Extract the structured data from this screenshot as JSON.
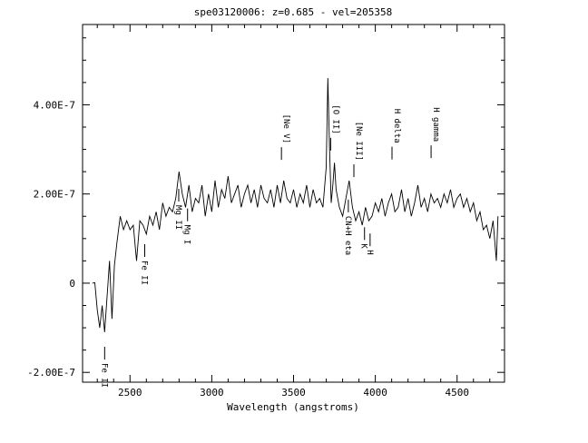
{
  "chart_data": {
    "type": "line",
    "title": "spe03120006: z=0.685 - vel=205358",
    "xlabel": "Wavelength (angstroms)",
    "ylabel": "",
    "xlim": [
      2210,
      4790
    ],
    "ylim": [
      -2.22e-07,
      5.8e-07
    ],
    "x_ticks": [
      2500,
      3000,
      3500,
      4000,
      4500
    ],
    "x_tick_labels": [
      "2500",
      "3000",
      "3500",
      "4000",
      "4500"
    ],
    "y_ticks": [
      -2e-07,
      0,
      2e-07,
      4e-07
    ],
    "y_tick_labels": [
      "-2.00E-7",
      "0",
      "2.00E-7",
      "4.00E-7"
    ],
    "grid": false,
    "series": [
      {
        "x": [
          2270,
          2285,
          2300,
          2315,
          2330,
          2345,
          2360,
          2375,
          2390,
          2405,
          2420,
          2440,
          2460,
          2480,
          2500,
          2520,
          2540,
          2560,
          2580,
          2600,
          2620,
          2640,
          2660,
          2680,
          2700,
          2720,
          2740,
          2760,
          2780,
          2800,
          2820,
          2840,
          2860,
          2880,
          2900,
          2920,
          2940,
          2960,
          2980,
          3000,
          3020,
          3040,
          3060,
          3080,
          3100,
          3120,
          3140,
          3160,
          3180,
          3200,
          3220,
          3240,
          3260,
          3280,
          3300,
          3320,
          3340,
          3360,
          3380,
          3400,
          3420,
          3440,
          3460,
          3480,
          3500,
          3520,
          3540,
          3560,
          3580,
          3600,
          3620,
          3640,
          3660,
          3680,
          3700,
          3710,
          3720,
          3730,
          3740,
          3750,
          3760,
          3780,
          3800,
          3820,
          3840,
          3860,
          3880,
          3900,
          3920,
          3940,
          3960,
          3980,
          4000,
          4020,
          4040,
          4060,
          4080,
          4100,
          4120,
          4140,
          4160,
          4180,
          4200,
          4220,
          4240,
          4260,
          4280,
          4300,
          4320,
          4340,
          4360,
          4380,
          4400,
          4420,
          4440,
          4460,
          4480,
          4500,
          4520,
          4540,
          4560,
          4580,
          4600,
          4620,
          4640,
          4660,
          4680,
          4700,
          4720,
          4740,
          4750
        ],
        "y": [
          0,
          1e-09,
          -6e-08,
          -1e-07,
          -5e-08,
          -1.1e-07,
          -3e-08,
          5e-08,
          -8e-08,
          4e-08,
          9e-08,
          1.5e-07,
          1.2e-07,
          1.4e-07,
          1.2e-07,
          1.3e-07,
          5e-08,
          1.4e-07,
          1.3e-07,
          1.1e-07,
          1.5e-07,
          1.3e-07,
          1.6e-07,
          1.2e-07,
          1.8e-07,
          1.5e-07,
          1.7e-07,
          1.6e-07,
          1.9e-07,
          2.5e-07,
          2e-07,
          1.7e-07,
          2.2e-07,
          1.6e-07,
          1.9e-07,
          1.8e-07,
          2.2e-07,
          1.5e-07,
          2e-07,
          1.6e-07,
          2.3e-07,
          1.7e-07,
          2.1e-07,
          1.9e-07,
          2.4e-07,
          1.8e-07,
          2e-07,
          2.2e-07,
          1.7e-07,
          2e-07,
          2.2e-07,
          1.8e-07,
          2.1e-07,
          1.7e-07,
          2.2e-07,
          1.9e-07,
          1.8e-07,
          2.1e-07,
          1.7e-07,
          2.2e-07,
          1.8e-07,
          2.3e-07,
          1.9e-07,
          1.8e-07,
          2.1e-07,
          1.7e-07,
          2e-07,
          1.8e-07,
          2.2e-07,
          1.7e-07,
          2.1e-07,
          1.8e-07,
          1.9e-07,
          1.7e-07,
          2.6e-07,
          4.6e-07,
          3e-07,
          1.8e-07,
          2.2e-07,
          2.7e-07,
          2.1e-07,
          1.7e-07,
          1.5e-07,
          1.9e-07,
          2.3e-07,
          1.7e-07,
          1.4e-07,
          1.6e-07,
          1.3e-07,
          1.7e-07,
          1.4e-07,
          1.5e-07,
          1.8e-07,
          1.6e-07,
          1.9e-07,
          1.5e-07,
          1.8e-07,
          2e-07,
          1.6e-07,
          1.7e-07,
          2.1e-07,
          1.6e-07,
          1.9e-07,
          1.5e-07,
          1.8e-07,
          2.2e-07,
          1.7e-07,
          1.9e-07,
          1.6e-07,
          2e-07,
          1.8e-07,
          1.9e-07,
          1.7e-07,
          2e-07,
          1.8e-07,
          2.1e-07,
          1.7e-07,
          1.9e-07,
          2e-07,
          1.7e-07,
          1.9e-07,
          1.6e-07,
          1.8e-07,
          1.4e-07,
          1.6e-07,
          1.2e-07,
          1.3e-07,
          1e-07,
          1.4e-07,
          5e-08,
          1.5e-07
        ]
      }
    ],
    "line_labels": [
      {
        "text": "Fe II",
        "x": 2345,
        "orient": "down"
      },
      {
        "text": "Fe II",
        "x": 2590,
        "orient": "down"
      },
      {
        "text": "Mg II",
        "x": 2798,
        "orient": "down"
      },
      {
        "text": "Mg I",
        "x": 2852,
        "orient": "down"
      },
      {
        "text": "[Ne V]",
        "x": 3426,
        "orient": "up"
      },
      {
        "text": "[O II]",
        "x": 3727,
        "orient": "up"
      },
      {
        "text": "CN+H eta",
        "x": 3835,
        "orient": "down"
      },
      {
        "text": "[Ne III]",
        "x": 3869,
        "orient": "up"
      },
      {
        "text": "K",
        "x": 3934,
        "orient": "down"
      },
      {
        "text": "H",
        "x": 3968,
        "orient": "down"
      },
      {
        "text": "H delta",
        "x": 4102,
        "orient": "up"
      },
      {
        "text": "H gamma",
        "x": 4341,
        "orient": "up"
      }
    ]
  }
}
